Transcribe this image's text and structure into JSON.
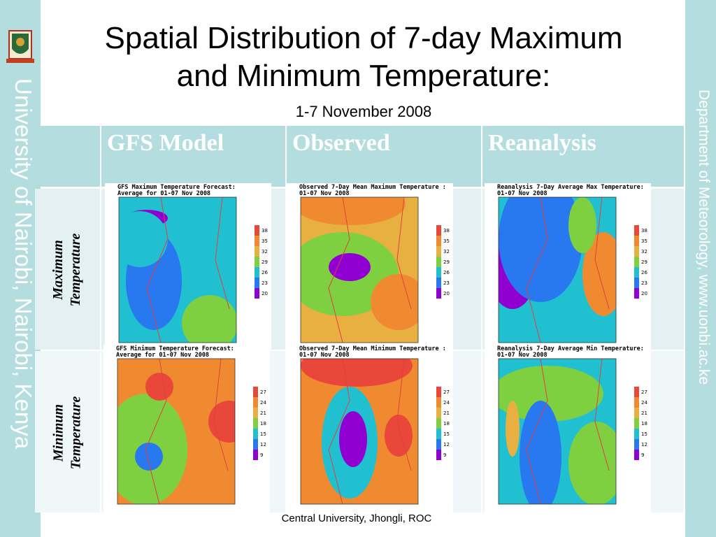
{
  "sidebar_left": "University of Nairobi, Nairobi, Kenya",
  "sidebar_right": "Department of Meteorology, www.uonbi.ac.ke",
  "title_line1": "Spatial Distribution of 7-day Maximum",
  "title_line2": "and Minimum Temperature:",
  "subtitle": "1-7 November 2008",
  "table": {
    "headers": [
      "GFS Model",
      "Observed",
      "Reanalysis"
    ],
    "row_labels": [
      [
        "Maximum",
        "Temperature"
      ],
      [
        "Minimum",
        "Temperature"
      ]
    ]
  },
  "maps": [
    [
      {
        "title": [
          "GFS Maximum Temperature Forecast:",
          "Average for 01-07 Nov 2008"
        ],
        "legend": [
          "38",
          "35",
          "32",
          "29",
          "26",
          "23",
          "20"
        ]
      },
      {
        "title": [
          "Observed 7-Day Mean Maximum Temperature :",
          "01-07 Nov 2008"
        ],
        "legend": [
          "38",
          "35",
          "32",
          "29",
          "26",
          "23",
          "20"
        ]
      },
      {
        "title": [
          "Reanalysis 7-Day Average Max Temperature:",
          "01-07 Nov 2008"
        ],
        "legend": [
          "38",
          "35",
          "32",
          "29",
          "26",
          "23",
          "20"
        ]
      }
    ],
    [
      {
        "title": [
          "GFS Minimum Temperature Forecast:",
          "Average for 01-07 Nov 2008"
        ],
        "legend": [
          "27",
          "24",
          "21",
          "18",
          "15",
          "12",
          "9"
        ]
      },
      {
        "title": [
          "Observed 7-Day Mean Minimum Temperature :",
          "01-07 Nov 2008"
        ],
        "legend": [
          "27",
          "24",
          "21",
          "18",
          "15",
          "12",
          "9"
        ]
      },
      {
        "title": [
          "Reanalysis 7-Day Average Min Temperature:",
          "01-07 Nov 2008"
        ],
        "legend": [
          "27",
          "24",
          "21",
          "18",
          "15",
          "12",
          "9"
        ]
      }
    ]
  ],
  "footer": "Central University, Jhongli, ROC"
}
